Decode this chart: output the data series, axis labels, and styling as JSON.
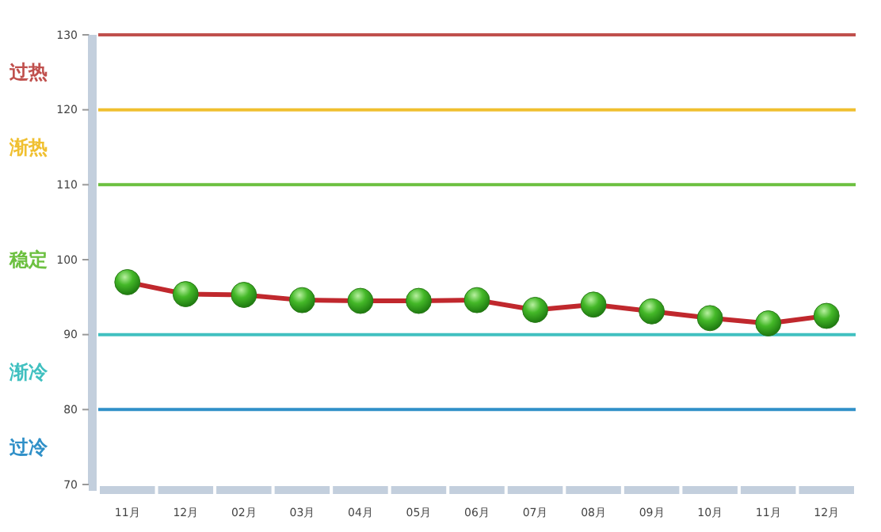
{
  "chart_data": {
    "type": "line",
    "categories": [
      "11月",
      "12月",
      "02月",
      "03月",
      "04月",
      "05月",
      "06月",
      "07月",
      "08月",
      "09月",
      "10月",
      "11月",
      "12月"
    ],
    "series": [
      {
        "color": "#c0282d",
        "values": [
          97,
          95.4,
          95.3,
          94.6,
          94.5,
          94.5,
          94.6,
          93.3,
          94,
          93.1,
          92.2,
          91.5,
          92.5
        ]
      }
    ],
    "marker": "circle",
    "ylim": [
      70,
      130
    ],
    "yticks": [
      70,
      80,
      90,
      100,
      110,
      120,
      130
    ],
    "grid": false,
    "ref_lines": [
      {
        "axis": "y",
        "value": 130,
        "color": "#c0504d"
      },
      {
        "axis": "y",
        "value": 120,
        "color": "#f0c030"
      },
      {
        "axis": "y",
        "value": 110,
        "color": "#6cc040"
      },
      {
        "axis": "y",
        "value": 90,
        "color": "#40c0c0"
      },
      {
        "axis": "y",
        "value": 80,
        "color": "#3090c8"
      }
    ],
    "annotations": [
      "过热",
      "渐热",
      "稳定",
      "渐冷",
      "过冷"
    ]
  }
}
